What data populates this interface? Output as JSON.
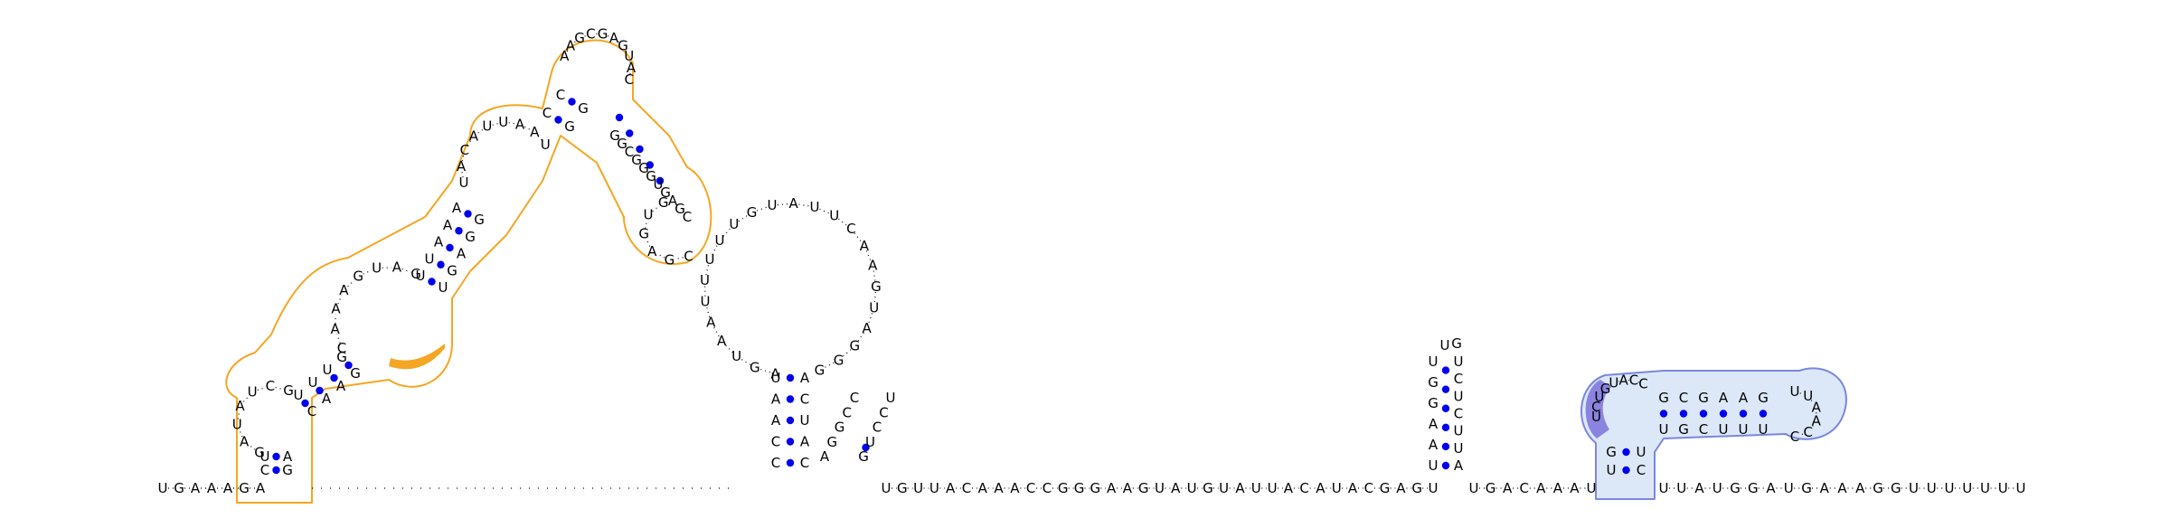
{
  "colors": {
    "background": "#ffffff",
    "text": "#000000",
    "base_pair_dot": "#0000ee",
    "orange_outline": "#f5a623",
    "orange_fill": "#ffffff",
    "orange_highlight": "#f5a623",
    "blue_outline": "#7b86e0",
    "blue_fill": "#dce8f8",
    "blue_highlight": "#8a84e0"
  },
  "sequence": {
    "five_prime_tail": "UGAAAGA",
    "linker_1": "UGUUACAAACCGGGAAGUAUGUAUUACAUACGAGU",
    "linker_2": "UGACAAAU",
    "three_prime_tail": "UUAUGGAUGAAAGGUUUUUUU"
  },
  "domains": {
    "orange": {
      "stem_1_5p": "CU",
      "stem_1_3p": "AG",
      "loop_1": "GAUAUCG",
      "stem_2_5p": "UUUG",
      "stem_2_3p": "CAAG",
      "internal_loop": "CAAAGUAG",
      "stem_3_5p": "UUAAA",
      "stem_3_3p": "UGAGG",
      "interior_loop": "UACAUUAAU",
      "stem_4_5p": "CC",
      "stem_4_3p": "GG",
      "apical_region": "AAGCGAGUAC",
      "stem_5": "GGCGGGUGAGC",
      "hairpin_loop": "CGAGUG"
    },
    "black": {
      "stem_5p": "CCAAU",
      "stem_3p": "ACUAC",
      "loop": "AGUAAUUUUUGUAUUCAAGUAGGG",
      "small_stem_5p": "AGGCC",
      "small_stem_3p": "GUCCU"
    },
    "hairpin_small": {
      "stem_5p": "UAAGGU",
      "stem_3p": "AUUCUCU",
      "loop": "UG"
    },
    "blue": {
      "stem_outer_5p": "UG",
      "stem_outer_3p": "UC",
      "loop_5p": "UCUGUACC",
      "stem_inner_5p": "GCGAAG",
      "stem_inner_3p": "UGCUUU",
      "hairpin_loop": "UUAACC"
    }
  }
}
